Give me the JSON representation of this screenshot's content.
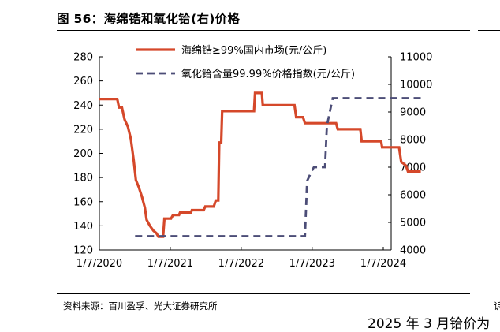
{
  "figure": {
    "title": "图 56：海绵锆和氧化铪(右)价格",
    "source": "资料来源：百川盈孚、光大证券研究所",
    "edge_fragment": "诉",
    "bottom_cut_text": "2025 年 3 月铪价为"
  },
  "colors": {
    "series_zr": "#d5482a",
    "series_hf": "#4c4d77",
    "axis": "#000000"
  },
  "chart_data": {
    "type": "line",
    "title": "",
    "xlabel": "",
    "ylabel": "",
    "ylabel_right": "",
    "x_ticks": [
      "1/7/2020",
      "1/7/2021",
      "1/7/2022",
      "1/7/2023",
      "1/7/2024"
    ],
    "y_left": {
      "lim": [
        120,
        280
      ],
      "ticks": [
        120,
        140,
        160,
        180,
        200,
        220,
        240,
        260,
        280
      ]
    },
    "y_right": {
      "lim": [
        4000,
        11000
      ],
      "ticks": [
        4000,
        5000,
        6000,
        7000,
        8000,
        9000,
        10000,
        11000
      ]
    },
    "legend_position": "top-center",
    "grid": false,
    "series": [
      {
        "name": "海绵锆≥99%国内市场(元/公斤)",
        "axis": "left",
        "style": "solid",
        "points": [
          [
            "2020-07-01",
            245
          ],
          [
            "2020-10-01",
            245
          ],
          [
            "2020-10-10",
            238
          ],
          [
            "2020-10-25",
            238
          ],
          [
            "2020-11-08",
            228
          ],
          [
            "2020-11-25",
            222
          ],
          [
            "2020-12-10",
            212
          ],
          [
            "2020-12-25",
            194
          ],
          [
            "2021-01-05",
            178
          ],
          [
            "2021-01-20",
            172
          ],
          [
            "2021-02-05",
            164
          ],
          [
            "2021-02-20",
            155
          ],
          [
            "2021-03-01",
            145
          ],
          [
            "2021-03-18",
            140
          ],
          [
            "2021-04-05",
            136
          ],
          [
            "2021-04-20",
            134
          ],
          [
            "2021-05-01",
            131
          ],
          [
            "2021-05-25",
            131
          ],
          [
            "2021-06-01",
            146
          ],
          [
            "2021-07-05",
            146
          ],
          [
            "2021-07-15",
            149
          ],
          [
            "2021-08-15",
            149
          ],
          [
            "2021-08-20",
            151
          ],
          [
            "2021-10-15",
            151
          ],
          [
            "2021-10-20",
            153
          ],
          [
            "2021-12-20",
            153
          ],
          [
            "2021-12-28",
            156
          ],
          [
            "2022-02-10",
            156
          ],
          [
            "2022-02-20",
            161
          ],
          [
            "2022-03-05",
            161
          ],
          [
            "2022-03-10",
            209
          ],
          [
            "2022-03-20",
            209
          ],
          [
            "2022-03-25",
            235
          ],
          [
            "2022-09-05",
            235
          ],
          [
            "2022-09-10",
            250
          ],
          [
            "2022-10-15",
            250
          ],
          [
            "2022-10-20",
            240
          ],
          [
            "2023-04-01",
            240
          ],
          [
            "2023-04-10",
            230
          ],
          [
            "2023-05-15",
            230
          ],
          [
            "2023-05-25",
            225
          ],
          [
            "2023-11-01",
            225
          ],
          [
            "2023-11-10",
            220
          ],
          [
            "2024-03-05",
            220
          ],
          [
            "2024-03-12",
            210
          ],
          [
            "2024-06-20",
            210
          ],
          [
            "2024-06-25",
            205
          ],
          [
            "2024-09-20",
            205
          ],
          [
            "2024-10-01",
            193
          ],
          [
            "2024-10-25",
            190
          ],
          [
            "2024-11-05",
            185
          ],
          [
            "2025-01-10",
            185
          ]
        ]
      },
      {
        "name": "氧化铪含量99.99%价格指数(元/公斤)",
        "axis": "right",
        "style": "dashed",
        "points": [
          [
            "2021-01-01",
            4500
          ],
          [
            "2023-05-25",
            4500
          ],
          [
            "2023-06-05",
            6500
          ],
          [
            "2023-06-25",
            6800
          ],
          [
            "2023-07-10",
            7000
          ],
          [
            "2023-09-05",
            7000
          ],
          [
            "2023-09-15",
            8500
          ],
          [
            "2023-10-15",
            9500
          ],
          [
            "2025-01-10",
            9500
          ]
        ]
      }
    ]
  }
}
